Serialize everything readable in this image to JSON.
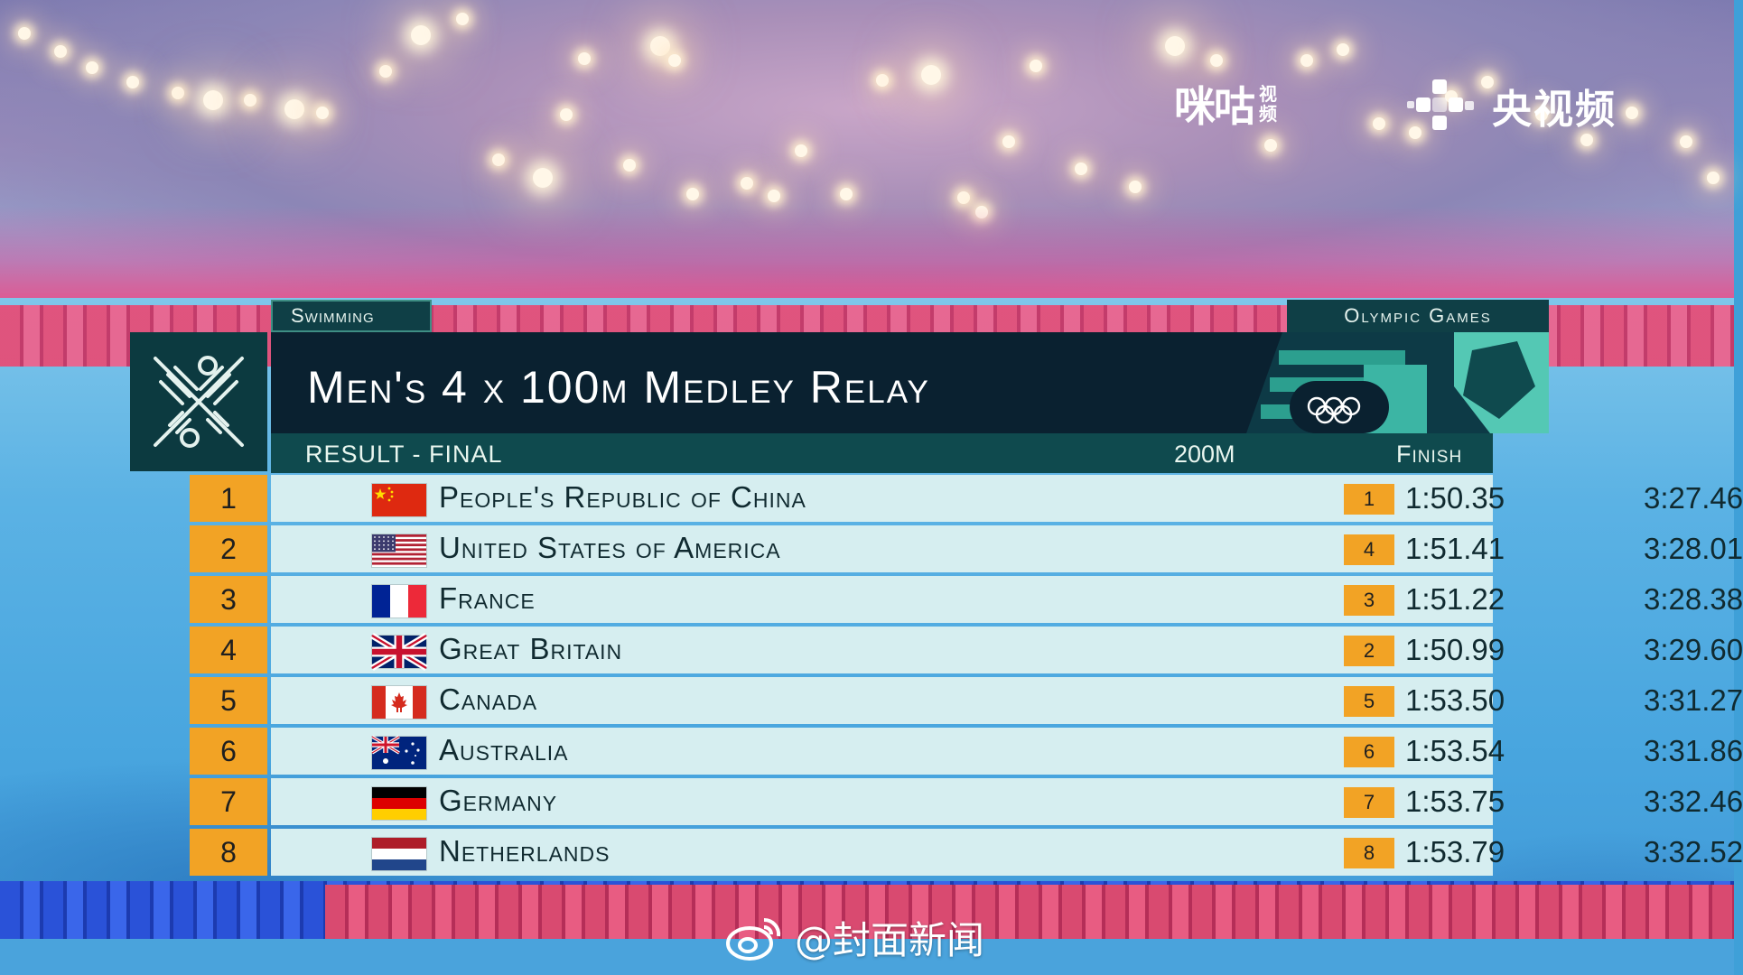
{
  "broadcasters": {
    "migu_main": "咪咕",
    "migu_sub_1": "视",
    "migu_sub_2": "频",
    "cctv": "央视频"
  },
  "header": {
    "sport_tag": "Swimming",
    "event_tag": "Olympic Games",
    "title": "Men's 4 x 100m Medley Relay",
    "subtitle": "RESULT - FINAL",
    "col_split": "200M",
    "col_finish": "Finish"
  },
  "colors": {
    "rank_bg": "#f2a325",
    "row_bg": "#d6eef0",
    "title_bg": "#0a2130",
    "accent_teal": "#0f4a4e"
  },
  "results": [
    {
      "rank": "1",
      "country": "People's Republic of China",
      "flag": "china-flag-icon",
      "split_rank": "1",
      "split_time": "1:50.35",
      "finish": "3:27.46"
    },
    {
      "rank": "2",
      "country": "United States of America",
      "flag": "usa-flag-icon",
      "split_rank": "4",
      "split_time": "1:51.41",
      "finish": "3:28.01"
    },
    {
      "rank": "3",
      "country": "France",
      "flag": "france-flag-icon",
      "split_rank": "3",
      "split_time": "1:51.22",
      "finish": "3:28.38"
    },
    {
      "rank": "4",
      "country": "Great Britain",
      "flag": "great-britain-flag-icon",
      "split_rank": "2",
      "split_time": "1:50.99",
      "finish": "3:29.60"
    },
    {
      "rank": "5",
      "country": "Canada",
      "flag": "canada-flag-icon",
      "split_rank": "5",
      "split_time": "1:53.50",
      "finish": "3:31.27"
    },
    {
      "rank": "6",
      "country": "Australia",
      "flag": "australia-flag-icon",
      "split_rank": "6",
      "split_time": "1:53.54",
      "finish": "3:31.86"
    },
    {
      "rank": "7",
      "country": "Germany",
      "flag": "germany-flag-icon",
      "split_rank": "7",
      "split_time": "1:53.75",
      "finish": "3:32.46"
    },
    {
      "rank": "8",
      "country": "Netherlands",
      "flag": "netherlands-flag-icon",
      "split_rank": "8",
      "split_time": "1:53.79",
      "finish": "3:32.52"
    }
  ],
  "watermark": "@封面新闻"
}
